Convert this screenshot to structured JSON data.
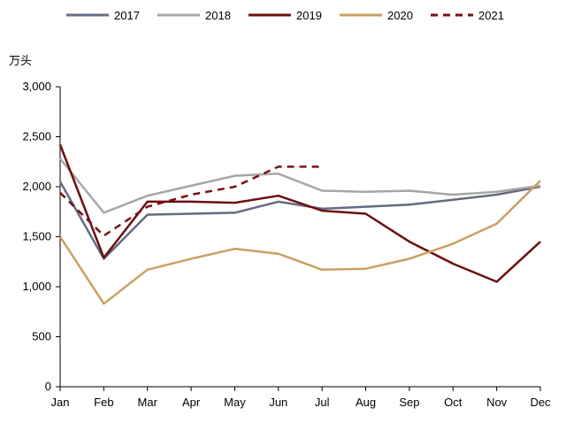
{
  "chart_data": {
    "type": "line",
    "title": "",
    "xlabel": "",
    "ylabel": "",
    "unit_label": "万头",
    "categories": [
      "Jan",
      "Feb",
      "Mar",
      "Apr",
      "May",
      "Jun",
      "Jul",
      "Aug",
      "Sep",
      "Oct",
      "Nov",
      "Dec"
    ],
    "ylim": [
      0,
      3000
    ],
    "yticks": [
      0,
      500,
      1000,
      1500,
      2000,
      2500,
      3000
    ],
    "ytick_labels": [
      "0",
      "500",
      "1,000",
      "1,500",
      "2,000",
      "2,500",
      "3,000"
    ],
    "grid": false,
    "legend_position": "top",
    "series": [
      {
        "name": "2017",
        "color": "#656b84",
        "dash": "solid",
        "values": [
          2050,
          1280,
          1720,
          1730,
          1740,
          1850,
          1780,
          1800,
          1820,
          1870,
          1920,
          2000
        ]
      },
      {
        "name": "2018",
        "color": "#a6a6a6",
        "dash": "solid",
        "values": [
          2280,
          1740,
          1910,
          2010,
          2110,
          2130,
          1960,
          1950,
          1960,
          1920,
          1950,
          2010
        ]
      },
      {
        "name": "2019",
        "color": "#6b0f12",
        "dash": "solid",
        "values": [
          2420,
          1290,
          1850,
          1850,
          1840,
          1910,
          1760,
          1730,
          1450,
          1230,
          1050,
          1450
        ]
      },
      {
        "name": "2020",
        "color": "#c9a063",
        "dash": "solid",
        "values": [
          1500,
          830,
          1170,
          1280,
          1380,
          1330,
          1170,
          1180,
          1280,
          1430,
          1630,
          2060
        ]
      },
      {
        "name": "2021",
        "color": "#7a1114",
        "dash": "dashed",
        "values": [
          1940,
          1510,
          1800,
          1920,
          2000,
          2200,
          2200,
          null,
          null,
          null,
          null,
          null
        ]
      }
    ]
  }
}
